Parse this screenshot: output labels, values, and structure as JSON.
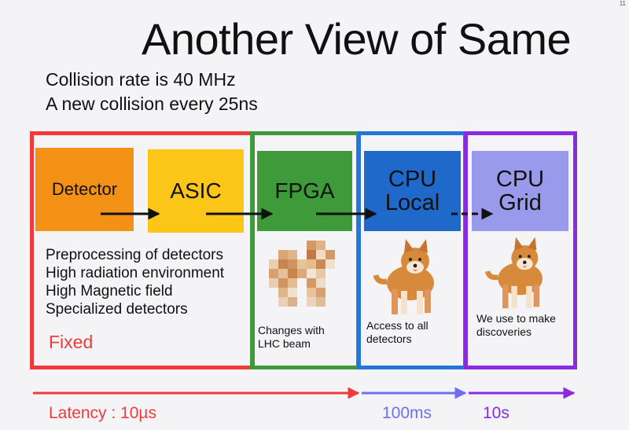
{
  "slide": {
    "number": "11",
    "title": "Another View of Same",
    "subtitle_lines": [
      "Collision rate is 40 MHz",
      "A new collision every 25ns"
    ]
  },
  "stages": {
    "detector": "Detector",
    "asic": "ASIC",
    "fpga": "FPGA",
    "cpu_local": "CPU\nLocal",
    "cpu_grid": "CPU\nGrid"
  },
  "fixed_section": {
    "lines": [
      "Preprocessing of detectors",
      "High radiation environment",
      "High Magnetic field",
      "Specialized detectors"
    ],
    "label": "Fixed"
  },
  "captions": {
    "fpga": "Changes with\nLHC beam",
    "cpu_local": "Access to all\ndetectors",
    "cpu_grid": "We use to make\ndiscoveries"
  },
  "latency": {
    "fixed": "Latency : 10µs",
    "local": "100ms",
    "grid": "10s"
  },
  "colors": {
    "fixed": "#ef3b3b",
    "fpga": "#3f9b3a",
    "cpu_local": "#2576d6",
    "cpu_grid": "#8a2be2",
    "detector_fill": "#f39016",
    "asic_fill": "#fcc618",
    "grid_fill": "#9a9aec",
    "latency_local": "#6f6ff0"
  },
  "images": [
    "pixelated-dog-icon",
    "shiba-dog-icon",
    "shiba-dog-icon"
  ]
}
